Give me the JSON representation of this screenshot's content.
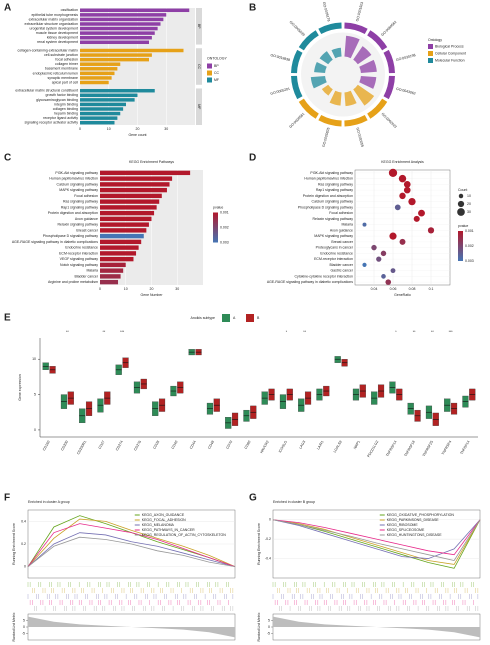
{
  "chart_data": [
    {
      "type": "bar",
      "label": "A",
      "xlabel": "Gene count",
      "legend_title": "ONTOLOGY",
      "xlim": [
        0,
        40
      ],
      "xticks": [
        0,
        10,
        20,
        30
      ],
      "series": [
        {
          "name": "BP",
          "color": "#8e3fa6",
          "categories": [
            "ossification",
            "epithelial tube morphogenesis",
            "extracellular matrix organization",
            "extracellular structure organization",
            "urogenital system development",
            "muscle tissue development",
            "kidney development",
            "renal system development"
          ],
          "values": [
            38,
            30,
            29,
            28,
            27,
            26,
            25,
            24
          ]
        },
        {
          "name": "CC",
          "color": "#e6a118",
          "categories": [
            "collagen-containing extracellular matrix",
            "cell-substrate junction",
            "focal adhesion",
            "collagen trimer",
            "basement membrane",
            "endoplasmic reticulum lumen",
            "synaptic membrane",
            "apical part of cell"
          ],
          "values": [
            36,
            25,
            24,
            14,
            13,
            12,
            11,
            10
          ]
        },
        {
          "name": "MF",
          "color": "#1f8a9c",
          "categories": [
            "extracellular matrix structural constituent",
            "growth factor binding",
            "glycosaminoglycan binding",
            "integrin binding",
            "collagen binding",
            "heparin binding",
            "receptor ligand activity",
            "signaling receptor activator activity"
          ],
          "values": [
            26,
            20,
            19,
            16,
            15,
            14,
            13,
            12
          ]
        }
      ]
    },
    {
      "type": "circular",
      "label": "B",
      "legend_title": "Ontology",
      "rlim": [
        0,
        40
      ],
      "series": [
        {
          "name": "Biological Process",
          "color": "#8e3fa6",
          "categories": [
            "GO:0001503",
            "GO:0060562",
            "GO:0030198",
            "GO:0043062"
          ],
          "values": [
            38,
            30,
            29,
            28
          ]
        },
        {
          "name": "Cellular Component",
          "color": "#e6a118",
          "categories": [
            "GO:0062023",
            "GO:0030055",
            "GO:0005925",
            "GO:0005581"
          ],
          "values": [
            36,
            25,
            24,
            14
          ]
        },
        {
          "name": "Molecular Function",
          "color": "#1f8a9c",
          "categories": [
            "GO:0005201",
            "GO:0019838",
            "GO:0005539",
            "GO:0005178"
          ],
          "values": [
            26,
            20,
            19,
            16
          ]
        }
      ]
    },
    {
      "type": "bar",
      "label": "C",
      "title": "KEGG Enrichment Pathways",
      "xlabel": "Gene Number",
      "legend_title": "pvalue",
      "colors": [
        "#b2182b",
        "#4575b4"
      ],
      "legend_ticks": [
        0.001,
        0.002,
        0.003
      ],
      "xlim": [
        0,
        40
      ],
      "xticks": [
        0,
        10,
        20,
        30
      ],
      "categories": [
        "PI3K-Akt signaling pathway",
        "Human papillomavirus infection",
        "Calcium signaling pathway",
        "MAPK signaling pathway",
        "Focal adhesion",
        "Ras signaling pathway",
        "Rap1 signaling pathway",
        "Protein digestion and absorption",
        "Axon guidance",
        "Relaxin signaling pathway",
        "Breast cancer",
        "Phospholipase D signaling pathway",
        "AGE-RAGE signaling pathway in diabetic complications",
        "Endocrine resistance",
        "ECM-receptor interaction",
        "VEGF signaling pathway",
        "Notch signaling pathway",
        "Malaria",
        "Bladder cancer",
        "Arginine and proline metabolism"
      ],
      "values": [
        35,
        28,
        27,
        26,
        24,
        23,
        22,
        21,
        20,
        19,
        18,
        17,
        16,
        15,
        14,
        13,
        10,
        9,
        8,
        7
      ],
      "pvalue": [
        0.0001,
        0.0002,
        0.0002,
        0.0003,
        0.0003,
        0.0004,
        0.0004,
        0.0005,
        0.0006,
        0.0006,
        0.0007,
        0.003,
        0.0008,
        0.0008,
        0.0009,
        0.001,
        0.0012,
        0.0013,
        0.0014,
        0.0015
      ]
    },
    {
      "type": "dot",
      "label": "D",
      "title": "KEGG Enrichment Analysis",
      "xlabel": "GeneRatio",
      "size_title": "Count",
      "legend_title": "pvalue",
      "colors": [
        "#b2182b",
        "#4575b4"
      ],
      "legend_ticks": [
        0.001,
        0.002,
        0.003
      ],
      "size_ticks": [
        10,
        20,
        30
      ],
      "xlim": [
        0.02,
        0.12
      ],
      "xticks": [
        0.04,
        0.06,
        0.08,
        0.1
      ],
      "categories": [
        "PI3K-Akt signaling pathway",
        "Human papillomavirus infection",
        "Ras signaling pathway",
        "Rap1 signaling pathway",
        "Protein digestion and absorption",
        "Calcium signaling pathway",
        "Phospholipase D signaling pathway",
        "Focal adhesion",
        "Relaxin signaling pathway",
        "Malaria",
        "Axon guidance",
        "MAPK signaling pathway",
        "Breast cancer",
        "Proteoglycans in cancer",
        "Endocrine resistance",
        "ECM-receptor interaction",
        "Bladder cancer",
        "Gastric cancer",
        "Cytokine-cytokine receptor interaction",
        "AGE-RAGE signaling pathway in diabetic complications"
      ],
      "values": [
        0.06,
        0.07,
        0.075,
        0.075,
        0.07,
        0.08,
        0.065,
        0.09,
        0.085,
        0.03,
        0.1,
        0.06,
        0.07,
        0.04,
        0.05,
        0.045,
        0.03,
        0.06,
        0.05,
        0.055
      ],
      "sizes": [
        35,
        28,
        23,
        22,
        21,
        27,
        17,
        24,
        19,
        8,
        20,
        26,
        18,
        15,
        15,
        14,
        9,
        12,
        11,
        16
      ],
      "pvalue": [
        0.0001,
        0.0003,
        0.0005,
        0.0006,
        0.0008,
        0.0004,
        0.0025,
        0.0007,
        0.001,
        0.0028,
        0.0012,
        0.0009,
        0.0015,
        0.002,
        0.0018,
        0.0022,
        0.003,
        0.0024,
        0.0026,
        0.0016
      ]
    },
    {
      "type": "box",
      "label": "E",
      "legend_title": "Anoikis subtype",
      "ylabel": "Gene expression",
      "ylim": [
        -1,
        13
      ],
      "yticks": [
        0,
        5,
        10
      ],
      "categories": [
        "CD160",
        "CD200",
        "CD200R1",
        "CD27",
        "CD274",
        "CD276",
        "CD28",
        "CD40",
        "CD44",
        "CD48",
        "CD70",
        "CD80",
        "HAVCR2",
        "ICOSLG",
        "LAG3",
        "LAIR1",
        "LGALS9",
        "NRP1",
        "PDCD1LG2",
        "TNFRSF14",
        "TNFRSF18",
        "TNFRSF25",
        "TNFRSF4",
        "TNFSF14"
      ],
      "significance": [
        null,
        "**",
        null,
        "**",
        "***",
        null,
        null,
        null,
        null,
        null,
        null,
        null,
        null,
        "*",
        "**",
        null,
        null,
        null,
        null,
        "*",
        "**",
        "**",
        "***",
        null
      ],
      "series": [
        {
          "name": "A",
          "color": "#2e8b57",
          "q1": [
            8.5,
            3.0,
            1.0,
            2.5,
            7.8,
            5.2,
            2.0,
            4.8,
            10.6,
            2.2,
            0.2,
            1.2,
            3.6,
            3.0,
            2.6,
            4.2,
            9.5,
            4.2,
            3.6,
            5.2,
            2.2,
            1.6,
            2.6,
            3.2
          ],
          "median": [
            9.0,
            4.0,
            2.0,
            3.5,
            8.5,
            6.0,
            3.0,
            5.5,
            11.0,
            3.0,
            1.0,
            2.0,
            4.5,
            4.0,
            3.5,
            5.0,
            10.0,
            5.0,
            4.5,
            6.0,
            3.0,
            2.5,
            3.5,
            4.0
          ],
          "q3": [
            9.5,
            5.0,
            3.0,
            4.4,
            9.2,
            6.8,
            4.0,
            6.2,
            11.4,
            3.8,
            1.8,
            2.8,
            5.4,
            5.0,
            4.4,
            5.8,
            10.4,
            5.8,
            5.4,
            6.8,
            3.8,
            3.4,
            4.4,
            4.8
          ]
        },
        {
          "name": "B",
          "color": "#b22222",
          "q1": [
            8.0,
            3.6,
            2.0,
            3.6,
            8.8,
            5.8,
            2.6,
            5.2,
            10.6,
            2.6,
            0.6,
            1.6,
            4.2,
            4.2,
            3.6,
            4.8,
            9.0,
            4.6,
            4.6,
            4.2,
            1.2,
            0.6,
            2.2,
            4.2
          ],
          "median": [
            8.5,
            4.5,
            3.0,
            4.5,
            9.5,
            6.5,
            3.5,
            6.0,
            11.0,
            3.5,
            1.5,
            2.5,
            5.0,
            5.0,
            4.5,
            5.5,
            9.5,
            5.5,
            5.5,
            5.0,
            2.0,
            1.5,
            3.0,
            5.0
          ],
          "q3": [
            9.0,
            5.4,
            4.0,
            5.4,
            10.2,
            7.2,
            4.4,
            6.8,
            11.4,
            4.4,
            2.4,
            3.4,
            5.8,
            5.8,
            5.4,
            6.2,
            10.0,
            6.4,
            6.4,
            5.8,
            2.8,
            2.4,
            3.8,
            5.8
          ]
        }
      ]
    },
    {
      "type": "line",
      "label": "F",
      "title": "Enriched in cluster A group",
      "ylabel": "Running Enrichment Score",
      "metric_label": "Ranked List Metric",
      "x": [
        0,
        2500,
        5000,
        7500,
        10000,
        12500,
        15000,
        17500,
        20000
      ],
      "xlim": [
        0,
        20000
      ],
      "ylim": [
        -0.1,
        0.5
      ],
      "yticks": [
        0,
        0.2,
        0.4
      ],
      "metric_ylim": [
        -10,
        10
      ],
      "metric_yticks": [
        -5,
        0,
        5
      ],
      "ranked_metric": [
        8,
        4,
        2,
        1,
        0,
        -1,
        -2,
        -4,
        -8
      ],
      "series": [
        {
          "name": "KEGG_AXON_GUIDANCE",
          "color": "#66a61e",
          "values": [
            0,
            0.35,
            0.45,
            0.38,
            0.3,
            0.22,
            0.15,
            0.08,
            0
          ]
        },
        {
          "name": "KEGG_FOCAL_ADHESION",
          "color": "#c9a227",
          "values": [
            0,
            0.25,
            0.42,
            0.4,
            0.32,
            0.25,
            0.18,
            0.1,
            0
          ]
        },
        {
          "name": "KEGG_MELANOMA",
          "color": "#7570b3",
          "values": [
            0,
            0.2,
            0.3,
            0.28,
            0.22,
            0.18,
            0.12,
            0.06,
            0
          ]
        },
        {
          "name": "KEGG_PATHWAYS_IN_CANCER",
          "color": "#e7298a",
          "values": [
            0,
            0.3,
            0.38,
            0.34,
            0.3,
            0.24,
            0.16,
            0.08,
            0
          ]
        },
        {
          "name": "KEGG_REGULATION_OF_ACTIN_CYTOSKELETON",
          "color": "#999999",
          "values": [
            0,
            0.18,
            0.26,
            0.24,
            0.2,
            0.14,
            0.1,
            0.04,
            0
          ]
        }
      ]
    },
    {
      "type": "line",
      "label": "G",
      "title": "Enriched in cluster B group",
      "ylabel": "Running Enrichment Score",
      "metric_label": "Ranked List Metric",
      "x": [
        0,
        2500,
        5000,
        7500,
        10000,
        12500,
        15000,
        17500,
        20000
      ],
      "xlim": [
        0,
        20000
      ],
      "ylim": [
        -0.6,
        0.1
      ],
      "yticks": [
        -0.4,
        -0.2,
        0
      ],
      "metric_ylim": [
        -10,
        10
      ],
      "metric_yticks": [
        -5,
        0,
        5
      ],
      "ranked_metric": [
        8,
        4,
        2,
        1,
        0,
        -1,
        -2,
        -4,
        -8
      ],
      "series": [
        {
          "name": "KEGG_OXIDATIVE_PHOSPHORYLATION",
          "color": "#66a61e",
          "values": [
            0,
            -0.05,
            -0.12,
            -0.2,
            -0.28,
            -0.36,
            -0.44,
            -0.5,
            0
          ]
        },
        {
          "name": "KEGG_PARKINSONS_DISEASE",
          "color": "#c9a227",
          "values": [
            0,
            -0.04,
            -0.1,
            -0.18,
            -0.26,
            -0.34,
            -0.42,
            -0.46,
            0
          ]
        },
        {
          "name": "KEGG_RIBOSOME",
          "color": "#7570b3",
          "values": [
            0,
            -0.06,
            -0.14,
            -0.22,
            -0.3,
            -0.38,
            -0.4,
            -0.3,
            0
          ]
        },
        {
          "name": "KEGG_SPLICEOSOME",
          "color": "#e7298a",
          "values": [
            0,
            -0.03,
            -0.08,
            -0.14,
            -0.2,
            -0.26,
            -0.32,
            -0.36,
            0
          ]
        },
        {
          "name": "KEGG_HUNTINGTONS_DISEASE",
          "color": "#999999",
          "values": [
            0,
            -0.05,
            -0.11,
            -0.17,
            -0.24,
            -0.3,
            -0.36,
            -0.42,
            0
          ]
        }
      ]
    }
  ]
}
